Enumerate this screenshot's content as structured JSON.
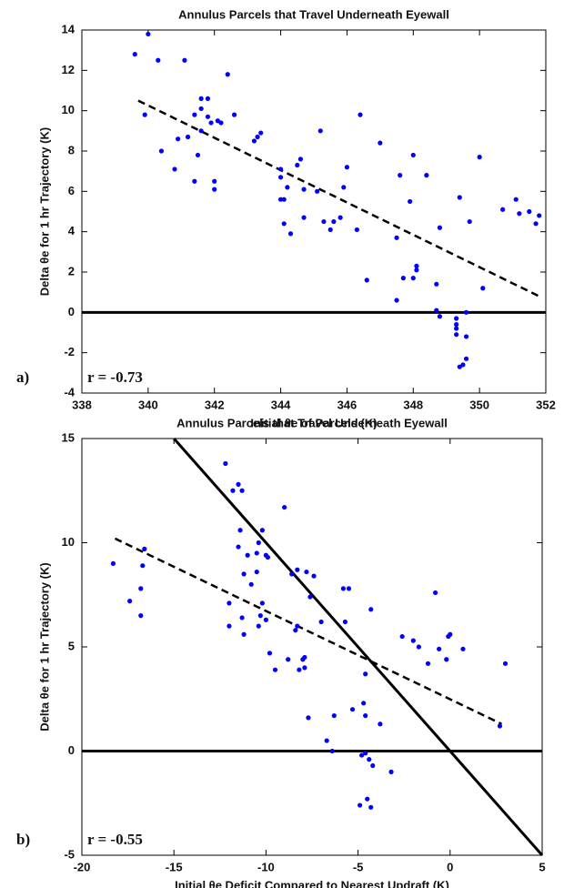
{
  "chart_data": [
    {
      "type": "scatter",
      "title": "Annulus Parcels that Travel Underneath Eyewall",
      "x_label": "Initial θe of Parcels (K)",
      "y_label": "Delta θe for 1 hr Trajectory (K)",
      "panel_label": "a)",
      "annotation": "r = -0.73",
      "xlim": [
        338,
        352
      ],
      "ylim": [
        -4,
        14
      ],
      "xticks": [
        338,
        340,
        342,
        344,
        346,
        348,
        350,
        352
      ],
      "yticks": [
        -4,
        -2,
        0,
        2,
        4,
        6,
        8,
        10,
        12,
        14
      ],
      "hlines": [
        0
      ],
      "lines": [
        {
          "style": "dashed",
          "x": [
            339.7,
            351.8
          ],
          "y": [
            10.5,
            0.8
          ]
        }
      ],
      "series": [
        {
          "color": "#0000ff",
          "x": [
            339.6,
            340.0,
            340.3,
            339.9,
            341.1,
            340.4,
            340.8,
            340.9,
            341.2,
            341.4,
            341.6,
            341.8,
            341.6,
            341.8,
            341.9,
            341.6,
            342.1,
            341.5,
            341.4,
            342.0,
            342.0,
            342.4,
            342.6,
            342.2,
            343.2,
            343.3,
            343.4,
            344.0,
            344.0,
            344.2,
            344.0,
            344.1,
            344.1,
            344.3,
            344.5,
            344.6,
            344.7,
            344.7,
            345.1,
            345.2,
            345.3,
            345.5,
            345.6,
            345.8,
            345.9,
            346.0,
            346.3,
            346.4,
            346.6,
            347.0,
            347.6,
            347.5,
            347.5,
            347.7,
            348.0,
            347.9,
            348.0,
            348.1,
            348.1,
            348.4,
            348.7,
            348.7,
            348.8,
            348.8,
            349.3,
            349.3,
            349.3,
            349.3,
            349.4,
            349.6,
            349.6,
            349.6,
            349.5,
            349.4,
            349.7,
            350.0,
            350.1,
            350.7,
            351.1,
            351.2,
            351.5,
            351.7,
            351.8
          ],
          "y": [
            12.8,
            13.8,
            12.5,
            9.8,
            12.5,
            8.0,
            7.1,
            8.6,
            8.7,
            9.8,
            10.6,
            10.6,
            10.1,
            9.7,
            9.4,
            9.0,
            9.5,
            7.8,
            6.5,
            6.5,
            6.1,
            11.8,
            9.8,
            9.4,
            8.5,
            8.7,
            8.9,
            7.1,
            6.7,
            6.2,
            5.6,
            5.6,
            4.4,
            3.9,
            7.3,
            7.6,
            6.1,
            4.7,
            6.0,
            9.0,
            4.5,
            4.1,
            4.5,
            4.7,
            6.2,
            7.2,
            4.1,
            9.8,
            1.6,
            8.4,
            6.8,
            3.7,
            0.6,
            1.7,
            7.8,
            5.5,
            1.7,
            2.1,
            2.3,
            6.8,
            1.4,
            0.1,
            -0.2,
            4.2,
            -0.3,
            -0.6,
            -0.8,
            -1.1,
            5.7,
            0.0,
            -1.2,
            -2.3,
            -2.6,
            -2.7,
            4.5,
            7.7,
            1.2,
            5.1,
            5.6,
            4.9,
            5.0,
            4.4,
            4.8
          ]
        }
      ]
    },
    {
      "type": "scatter",
      "title": "Annulus Parcels that Travel Underneath Eyewall",
      "x_label": "Initial θe Deficit Compared to Nearest Updraft (K)",
      "y_label": "Delta θe for 1 hr Trajectory (K)",
      "panel_label": "b)",
      "annotation": "r = -0.55",
      "xlim": [
        -20,
        5
      ],
      "ylim": [
        -5,
        15
      ],
      "xticks": [
        -20,
        -15,
        -10,
        -5,
        0,
        5
      ],
      "yticks": [
        -5,
        0,
        5,
        10,
        15
      ],
      "hlines": [
        0
      ],
      "lines": [
        {
          "style": "dashed",
          "x": [
            -18.2,
            2.8
          ],
          "y": [
            10.2,
            1.3
          ]
        },
        {
          "style": "solid",
          "x": [
            -15,
            5
          ],
          "y": [
            15,
            -5
          ]
        }
      ],
      "series": [
        {
          "color": "#0000ff",
          "x": [
            -18.3,
            -17.4,
            -16.8,
            -16.8,
            -16.7,
            -16.6,
            -12.2,
            -11.8,
            -11.5,
            -11.3,
            -11.4,
            -11.5,
            -11.2,
            -11.0,
            -10.8,
            -10.5,
            -10.4,
            -10.2,
            -10.0,
            -9.9,
            -10.5,
            -10.2,
            -12.0,
            -12.0,
            -11.3,
            -11.2,
            -10.4,
            -10.0,
            -9.8,
            -9.5,
            -10.3,
            -9.0,
            -8.6,
            -8.8,
            -8.3,
            -8.4,
            -8.0,
            -7.9,
            -8.2,
            -7.6,
            -7.4,
            -7.0,
            -8.3,
            -7.8,
            -7.9,
            -7.7,
            -6.7,
            -6.3,
            -6.4,
            -5.8,
            -5.5,
            -5.7,
            -5.3,
            -4.7,
            -4.6,
            -4.6,
            -4.8,
            -4.6,
            -4.4,
            -4.2,
            -4.5,
            -4.3,
            -4.9,
            -4.3,
            -3.8,
            -3.2,
            -2.6,
            -2.0,
            -1.7,
            -1.2,
            -0.8,
            -0.6,
            -0.2,
            -0.1,
            0.0,
            0.7,
            2.7,
            3.0
          ],
          "y": [
            9.0,
            7.2,
            7.8,
            6.5,
            8.9,
            9.7,
            13.8,
            12.5,
            12.8,
            12.5,
            10.6,
            9.8,
            8.5,
            9.4,
            8.0,
            9.5,
            10.0,
            10.6,
            9.4,
            9.3,
            8.6,
            7.1,
            7.1,
            6.0,
            6.4,
            5.6,
            6.0,
            6.3,
            4.7,
            3.9,
            6.5,
            11.7,
            8.5,
            4.4,
            6.0,
            5.8,
            4.4,
            4.0,
            3.9,
            7.4,
            8.4,
            6.2,
            8.7,
            8.6,
            4.5,
            1.6,
            0.5,
            1.7,
            0.0,
            7.8,
            7.8,
            6.2,
            2.0,
            2.3,
            1.7,
            3.7,
            -0.2,
            -0.1,
            -0.4,
            -0.7,
            -2.3,
            -2.7,
            -2.6,
            6.8,
            1.3,
            -1.0,
            5.5,
            5.3,
            5.0,
            4.2,
            7.6,
            4.9,
            4.4,
            5.5,
            5.6,
            4.9,
            1.2,
            4.2
          ]
        }
      ]
    }
  ]
}
